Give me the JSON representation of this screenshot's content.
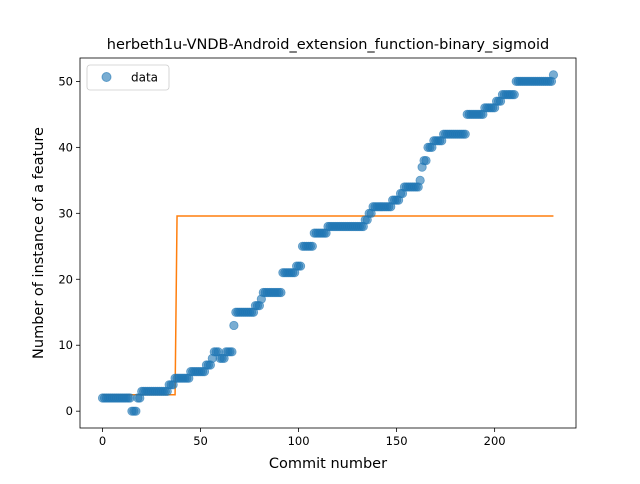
{
  "chart_data": {
    "type": "scatter",
    "title": "herbeth1u-VNDB-Android_extension_function-binary_sigmoid",
    "xlabel": "Commit number",
    "ylabel": "Number of instance of a feature",
    "xlim": [
      -11.5,
      241.5
    ],
    "ylim": [
      -2.55,
      53.55
    ],
    "xticks": [
      0,
      50,
      100,
      150,
      200
    ],
    "yticks": [
      0,
      10,
      20,
      30,
      40,
      50
    ],
    "grid": false,
    "legend": {
      "placement": "top-left",
      "entries": [
        "data"
      ]
    },
    "colors": {
      "data": "#1f77b4",
      "fit": "#ff7f0e"
    },
    "series": [
      {
        "name": "data",
        "kind": "scatter",
        "points": [
          [
            0,
            2
          ],
          [
            1,
            2
          ],
          [
            2,
            2
          ],
          [
            3,
            2
          ],
          [
            4,
            2
          ],
          [
            5,
            2
          ],
          [
            6,
            2
          ],
          [
            7,
            2
          ],
          [
            8,
            2
          ],
          [
            9,
            2
          ],
          [
            10,
            2
          ],
          [
            11,
            2
          ],
          [
            12,
            2
          ],
          [
            13,
            2
          ],
          [
            14,
            2
          ],
          [
            15,
            0
          ],
          [
            16,
            0
          ],
          [
            17,
            0
          ],
          [
            18,
            2
          ],
          [
            19,
            2
          ],
          [
            20,
            3
          ],
          [
            21,
            3
          ],
          [
            22,
            3
          ],
          [
            23,
            3
          ],
          [
            24,
            3
          ],
          [
            25,
            3
          ],
          [
            26,
            3
          ],
          [
            27,
            3
          ],
          [
            28,
            3
          ],
          [
            29,
            3
          ],
          [
            30,
            3
          ],
          [
            31,
            3
          ],
          [
            32,
            3
          ],
          [
            33,
            3
          ],
          [
            34,
            4
          ],
          [
            35,
            4
          ],
          [
            36,
            4
          ],
          [
            37,
            5
          ],
          [
            38,
            5
          ],
          [
            39,
            5
          ],
          [
            40,
            5
          ],
          [
            41,
            5
          ],
          [
            42,
            5
          ],
          [
            43,
            5
          ],
          [
            44,
            5
          ],
          [
            45,
            6
          ],
          [
            46,
            6
          ],
          [
            47,
            6
          ],
          [
            48,
            6
          ],
          [
            49,
            6
          ],
          [
            50,
            6
          ],
          [
            51,
            6
          ],
          [
            52,
            6
          ],
          [
            53,
            7
          ],
          [
            54,
            7
          ],
          [
            55,
            7
          ],
          [
            56,
            8
          ],
          [
            57,
            9
          ],
          [
            58,
            9
          ],
          [
            59,
            9
          ],
          [
            60,
            8
          ],
          [
            61,
            8
          ],
          [
            62,
            8
          ],
          [
            63,
            9
          ],
          [
            64,
            9
          ],
          [
            65,
            9
          ],
          [
            66,
            9
          ],
          [
            67,
            13
          ],
          [
            68,
            15
          ],
          [
            69,
            15
          ],
          [
            70,
            15
          ],
          [
            71,
            15
          ],
          [
            72,
            15
          ],
          [
            73,
            15
          ],
          [
            74,
            15
          ],
          [
            75,
            15
          ],
          [
            76,
            15
          ],
          [
            77,
            15
          ],
          [
            78,
            16
          ],
          [
            79,
            16
          ],
          [
            80,
            16
          ],
          [
            81,
            17
          ],
          [
            82,
            18
          ],
          [
            83,
            18
          ],
          [
            84,
            18
          ],
          [
            85,
            18
          ],
          [
            86,
            18
          ],
          [
            87,
            18
          ],
          [
            88,
            18
          ],
          [
            89,
            18
          ],
          [
            90,
            18
          ],
          [
            91,
            18
          ],
          [
            92,
            21
          ],
          [
            93,
            21
          ],
          [
            94,
            21
          ],
          [
            95,
            21
          ],
          [
            96,
            21
          ],
          [
            97,
            21
          ],
          [
            98,
            21
          ],
          [
            99,
            22
          ],
          [
            100,
            22
          ],
          [
            101,
            22
          ],
          [
            102,
            25
          ],
          [
            103,
            25
          ],
          [
            104,
            25
          ],
          [
            105,
            25
          ],
          [
            106,
            25
          ],
          [
            107,
            25
          ],
          [
            108,
            27
          ],
          [
            109,
            27
          ],
          [
            110,
            27
          ],
          [
            111,
            27
          ],
          [
            112,
            27
          ],
          [
            113,
            27
          ],
          [
            114,
            27
          ],
          [
            115,
            28
          ],
          [
            116,
            28
          ],
          [
            117,
            28
          ],
          [
            118,
            28
          ],
          [
            119,
            28
          ],
          [
            120,
            28
          ],
          [
            121,
            28
          ],
          [
            122,
            28
          ],
          [
            123,
            28
          ],
          [
            124,
            28
          ],
          [
            125,
            28
          ],
          [
            126,
            28
          ],
          [
            127,
            28
          ],
          [
            128,
            28
          ],
          [
            129,
            28
          ],
          [
            130,
            28
          ],
          [
            131,
            28
          ],
          [
            132,
            28
          ],
          [
            133,
            28
          ],
          [
            134,
            29
          ],
          [
            135,
            29
          ],
          [
            136,
            30
          ],
          [
            137,
            30
          ],
          [
            138,
            31
          ],
          [
            139,
            31
          ],
          [
            140,
            31
          ],
          [
            141,
            31
          ],
          [
            142,
            31
          ],
          [
            143,
            31
          ],
          [
            144,
            31
          ],
          [
            145,
            31
          ],
          [
            146,
            31
          ],
          [
            147,
            31
          ],
          [
            148,
            32
          ],
          [
            149,
            32
          ],
          [
            150,
            32
          ],
          [
            151,
            32
          ],
          [
            152,
            33
          ],
          [
            153,
            33
          ],
          [
            154,
            34
          ],
          [
            155,
            34
          ],
          [
            156,
            34
          ],
          [
            157,
            34
          ],
          [
            158,
            34
          ],
          [
            159,
            34
          ],
          [
            160,
            34
          ],
          [
            161,
            34
          ],
          [
            162,
            35
          ],
          [
            163,
            37
          ],
          [
            164,
            38
          ],
          [
            165,
            38
          ],
          [
            166,
            40
          ],
          [
            167,
            40
          ],
          [
            168,
            40
          ],
          [
            169,
            41
          ],
          [
            170,
            41
          ],
          [
            171,
            41
          ],
          [
            172,
            41
          ],
          [
            173,
            41
          ],
          [
            174,
            42
          ],
          [
            175,
            42
          ],
          [
            176,
            42
          ],
          [
            177,
            42
          ],
          [
            178,
            42
          ],
          [
            179,
            42
          ],
          [
            180,
            42
          ],
          [
            181,
            42
          ],
          [
            182,
            42
          ],
          [
            183,
            42
          ],
          [
            184,
            42
          ],
          [
            185,
            42
          ],
          [
            186,
            45
          ],
          [
            187,
            45
          ],
          [
            188,
            45
          ],
          [
            189,
            45
          ],
          [
            190,
            45
          ],
          [
            191,
            45
          ],
          [
            192,
            45
          ],
          [
            193,
            45
          ],
          [
            194,
            45
          ],
          [
            195,
            46
          ],
          [
            196,
            46
          ],
          [
            197,
            46
          ],
          [
            198,
            46
          ],
          [
            199,
            46
          ],
          [
            200,
            46
          ],
          [
            201,
            47
          ],
          [
            202,
            47
          ],
          [
            203,
            47
          ],
          [
            204,
            48
          ],
          [
            205,
            48
          ],
          [
            206,
            48
          ],
          [
            207,
            48
          ],
          [
            208,
            48
          ],
          [
            209,
            48
          ],
          [
            210,
            48
          ],
          [
            211,
            50
          ],
          [
            212,
            50
          ],
          [
            213,
            50
          ],
          [
            214,
            50
          ],
          [
            215,
            50
          ],
          [
            216,
            50
          ],
          [
            217,
            50
          ],
          [
            218,
            50
          ],
          [
            219,
            50
          ],
          [
            220,
            50
          ],
          [
            221,
            50
          ],
          [
            222,
            50
          ],
          [
            223,
            50
          ],
          [
            224,
            50
          ],
          [
            225,
            50
          ],
          [
            226,
            50
          ],
          [
            227,
            50
          ],
          [
            228,
            50
          ],
          [
            229,
            50
          ],
          [
            230,
            51
          ]
        ]
      },
      {
        "kind": "line",
        "points": [
          [
            0,
            2.5
          ],
          [
            37,
            2.5
          ],
          [
            38,
            29.6
          ],
          [
            230,
            29.6
          ]
        ]
      }
    ]
  }
}
